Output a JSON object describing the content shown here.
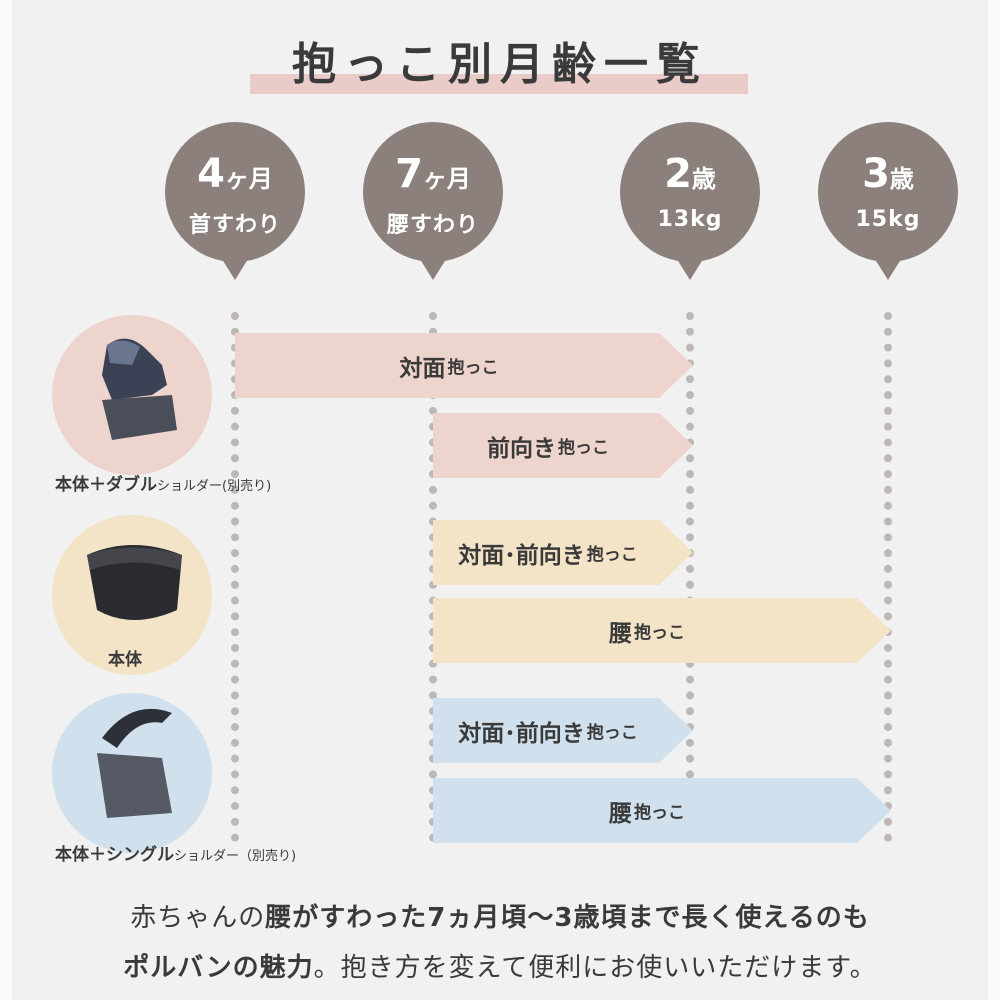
{
  "title": "抱っこ別月齢一覧",
  "markers": [
    {
      "main": "4",
      "unit": "ヶ月",
      "sub": "首すわり"
    },
    {
      "main": "7",
      "unit": "ヶ月",
      "sub": "腰すわり"
    },
    {
      "main": "2",
      "unit": "歳",
      "sub": "13kg"
    },
    {
      "main": "3",
      "unit": "歳",
      "sub": "15kg"
    }
  ],
  "products": [
    {
      "name_bold": "本体＋ダブル",
      "name_small": "ショルダー(別売り)",
      "color": "#edd4cd"
    },
    {
      "name_bold": "本体",
      "name_small": "",
      "color": "#f3e3c7"
    },
    {
      "name_bold": "本体＋シングル",
      "name_small": "ショルダー（別売り)",
      "color": "#d0e1ed"
    }
  ],
  "bars": [
    {
      "main": "対面",
      "small": "抱っこ"
    },
    {
      "main": "前向き",
      "small": "抱っこ"
    },
    {
      "main": "対面･前向き",
      "small": "抱っこ"
    },
    {
      "main": "腰",
      "small": "抱っこ"
    },
    {
      "main": "対面･前向き",
      "small": "抱っこ"
    },
    {
      "main": "腰",
      "small": "抱っこ"
    }
  ],
  "footer": {
    "l1_a": "赤ちゃんの",
    "l1_b": "腰がすわった7ヵ月頃〜3歳頃まで長く使えるのも",
    "l2_a": "ポルバンの魅力",
    "l2_b": "。抱き方を変えて便利にお使いいただけます。"
  }
}
